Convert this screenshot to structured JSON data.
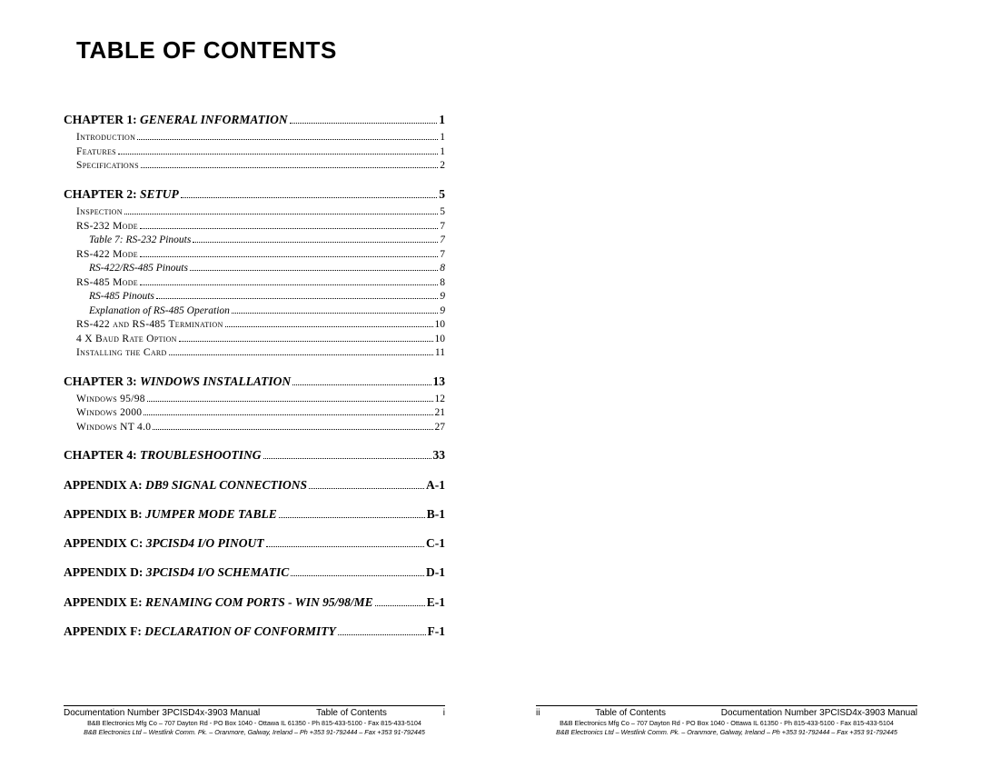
{
  "title": "TABLE OF CONTENTS",
  "chapters": [
    {
      "head_a": "CHAPTER 1:",
      "head_b": "GENERAL INFORMATION",
      "page": "1",
      "items": [
        {
          "kind": "entry",
          "text": "Introduction",
          "page": "1"
        },
        {
          "kind": "entry",
          "text": "Features",
          "page": "1"
        },
        {
          "kind": "entry",
          "text": "Specifications",
          "page": "2"
        }
      ]
    },
    {
      "head_a": "CHAPTER 2:",
      "head_b": "SETUP",
      "page": "5",
      "items": [
        {
          "kind": "entry",
          "text": "Inspection",
          "page": "5"
        },
        {
          "kind": "entry",
          "text": "RS-232 Mode",
          "page": "7"
        },
        {
          "kind": "ital",
          "text": "Table 7:  RS-232 Pinouts",
          "page": "7"
        },
        {
          "kind": "entry",
          "text": "RS-422 Mode",
          "page": "7"
        },
        {
          "kind": "ital",
          "text": "RS-422/RS-485 Pinouts",
          "page": "8"
        },
        {
          "kind": "entry",
          "text": "RS-485 Mode",
          "page": "8"
        },
        {
          "kind": "ital",
          "text": "RS-485 Pinouts",
          "page": "9"
        },
        {
          "kind": "ital",
          "text": "Explanation of RS-485 Operation",
          "page": "9"
        },
        {
          "kind": "entry",
          "text": "RS-422 and RS-485 Termination",
          "page": "10"
        },
        {
          "kind": "entry",
          "text": "4 X Baud Rate Option",
          "page": "10"
        },
        {
          "kind": "entry",
          "text": "Installing the Card",
          "page": "11"
        }
      ]
    },
    {
      "head_a": "CHAPTER 3:",
      "head_b": "WINDOWS INSTALLATION",
      "page": "13",
      "items": [
        {
          "kind": "entry",
          "text": "Windows 95/98",
          "page": "12"
        },
        {
          "kind": "entry",
          "text": "Windows 2000",
          "page": "21"
        },
        {
          "kind": "entry",
          "text": "Windows NT 4.0",
          "page": "27"
        }
      ]
    },
    {
      "head_a": "CHAPTER 4:",
      "head_b": "TROUBLESHOOTING",
      "page": "33",
      "items": []
    },
    {
      "head_a": "APPENDIX A:",
      "head_b": "DB9 SIGNAL CONNECTIONS",
      "page": "A-1",
      "items": []
    },
    {
      "head_a": "APPENDIX B:",
      "head_b": "JUMPER MODE TABLE",
      "page": "B-1",
      "items": []
    },
    {
      "head_a": "APPENDIX C:",
      "head_b": "3PCISD4 I/O PINOUT",
      "page": "C-1",
      "items": []
    },
    {
      "head_a": "APPENDIX D:",
      "head_b": "3PCISD4 I/O SCHEMATIC",
      "page": "D-1",
      "items": []
    },
    {
      "head_a": "APPENDIX E:",
      "head_b": "RENAMING COM PORTS - WIN 95/98/ME",
      "page": "E-1",
      "items": []
    },
    {
      "head_a": "APPENDIX F:",
      "head_b": "DECLARATION OF CONFORMITY",
      "page": "F-1",
      "items": []
    }
  ],
  "footer": {
    "doc_line": "Documentation Number 3PCISD4x-3903 Manual",
    "toc_label": "Table of Contents",
    "page_i": "i",
    "page_ii": "ii",
    "line2": "B&B Electronics Mfg Co – 707 Dayton Rd - PO Box 1040 - Ottawa IL 61350 - Ph 815-433-5100 - Fax 815-433-5104",
    "line3": "B&B Electronics Ltd – Westlink Comm. Pk. – Oranmore, Galway, Ireland – Ph +353 91-792444 – Fax +353 91-792445"
  }
}
